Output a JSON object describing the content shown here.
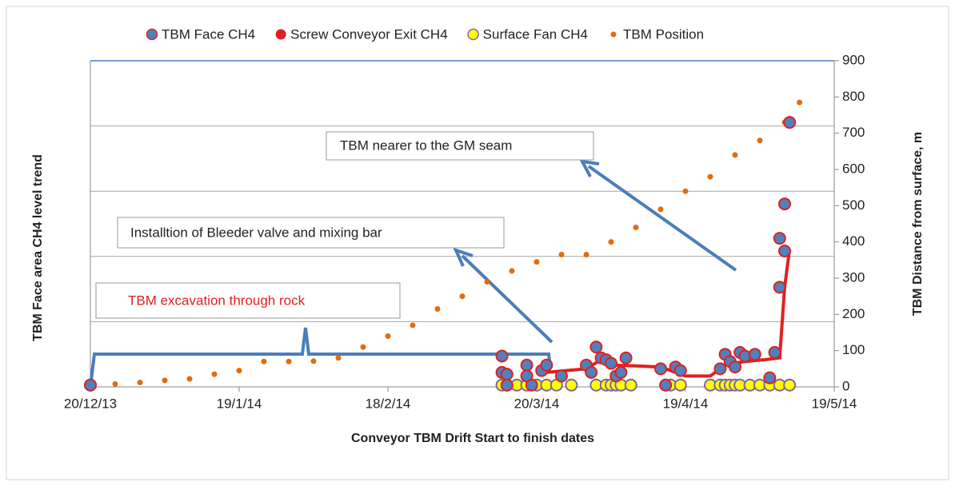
{
  "chart_data": {
    "type": "scatter",
    "x_label": "Conveyor TBM Drift Start to finish dates",
    "y_label": "TBM Face area CH4 level trend",
    "y2_label": "TBM Distance from surface, m",
    "xlim": [
      "2013-12-20",
      "2014-05-19"
    ],
    "xticks": [
      {
        "value": "2013-12-20",
        "label": "20/12/13"
      },
      {
        "value": "2014-01-19",
        "label": "19/1/14"
      },
      {
        "value": "2014-02-18",
        "label": "18/2/14"
      },
      {
        "value": "2014-03-20",
        "label": "20/3/14"
      },
      {
        "value": "2014-04-19",
        "label": "19/4/14"
      },
      {
        "value": "2014-05-19",
        "label": "19/5/14"
      }
    ],
    "y2lim": [
      0,
      900
    ],
    "y2ticks": [
      0,
      100,
      200,
      300,
      400,
      500,
      600,
      700,
      800,
      900
    ],
    "grid": true,
    "legend": "top",
    "series": [
      {
        "name": "TBM Face CH4",
        "color": "#4f81bd",
        "edge": "#e02020",
        "mode": "markers",
        "axis": "y2",
        "x": [
          "2013-12-20",
          "2014-03-13",
          "2014-03-13",
          "2014-03-14",
          "2014-03-14",
          "2014-03-18",
          "2014-03-18",
          "2014-03-19",
          "2014-03-21",
          "2014-03-22",
          "2014-03-25",
          "2014-03-30",
          "2014-03-31",
          "2014-04-01",
          "2014-04-02",
          "2014-04-03",
          "2014-04-04",
          "2014-04-05",
          "2014-04-06",
          "2014-04-07",
          "2014-04-14",
          "2014-04-15",
          "2014-04-17",
          "2014-04-18",
          "2014-04-26",
          "2014-04-27",
          "2014-04-28",
          "2014-04-29",
          "2014-04-30",
          "2014-05-01",
          "2014-05-03",
          "2014-05-06",
          "2014-05-07",
          "2014-05-08",
          "2014-05-08",
          "2014-05-09",
          "2014-05-09",
          "2014-05-10"
        ],
        "values": [
          5,
          85,
          40,
          35,
          5,
          60,
          30,
          5,
          45,
          60,
          30,
          60,
          40,
          110,
          80,
          75,
          65,
          30,
          40,
          80,
          50,
          5,
          55,
          45,
          50,
          90,
          70,
          55,
          95,
          85,
          90,
          25,
          95,
          275,
          410,
          505,
          375,
          730
        ]
      },
      {
        "name": "Screw Conveyor Exit CH4",
        "color": "#e02020",
        "mode": "line",
        "axis": "y2",
        "x": [
          "2014-03-22",
          "2014-03-26",
          "2014-03-30",
          "2014-04-02",
          "2014-04-04",
          "2014-04-09",
          "2014-04-14",
          "2014-04-19",
          "2014-04-24",
          "2014-04-27",
          "2014-05-01",
          "2014-05-05",
          "2014-05-08",
          "2014-05-09",
          "2014-05-10"
        ],
        "values": [
          40,
          45,
          50,
          75,
          60,
          58,
          55,
          30,
          30,
          60,
          70,
          75,
          80,
          275,
          380
        ]
      },
      {
        "name": "Surface Fan CH4",
        "color": "#ffff00",
        "edge": "#8064a2",
        "mode": "markers",
        "axis": "y2",
        "x": [
          "2013-12-20",
          "2014-03-13",
          "2014-03-14",
          "2014-03-16",
          "2014-03-18",
          "2014-03-20",
          "2014-03-22",
          "2014-03-24",
          "2014-03-27",
          "2014-04-01",
          "2014-04-03",
          "2014-04-04",
          "2014-04-05",
          "2014-04-06",
          "2014-04-08",
          "2014-04-15",
          "2014-04-16",
          "2014-04-18",
          "2014-04-24",
          "2014-04-26",
          "2014-04-27",
          "2014-04-28",
          "2014-04-29",
          "2014-04-30",
          "2014-05-02",
          "2014-05-04",
          "2014-05-06",
          "2014-05-08",
          "2014-05-10"
        ],
        "values": [
          5,
          5,
          5,
          5,
          5,
          5,
          5,
          5,
          5,
          5,
          5,
          5,
          5,
          5,
          5,
          5,
          5,
          5,
          5,
          5,
          5,
          5,
          5,
          5,
          5,
          5,
          5,
          5,
          5
        ]
      },
      {
        "name": "TBM Position",
        "color": "#e46c0a",
        "mode": "dots",
        "axis": "y2",
        "x": [
          "2013-12-20",
          "2013-12-25",
          "2013-12-30",
          "2014-01-04",
          "2014-01-09",
          "2014-01-14",
          "2014-01-19",
          "2014-01-24",
          "2014-01-29",
          "2014-02-03",
          "2014-02-08",
          "2014-02-13",
          "2014-02-18",
          "2014-02-23",
          "2014-02-28",
          "2014-03-05",
          "2014-03-10",
          "2014-03-15",
          "2014-03-20",
          "2014-03-25",
          "2014-03-30",
          "2014-04-04",
          "2014-04-09",
          "2014-04-14",
          "2014-04-19",
          "2014-04-24",
          "2014-04-29",
          "2014-05-04",
          "2014-05-09",
          "2014-05-12"
        ],
        "values": [
          5,
          8,
          12,
          18,
          22,
          35,
          45,
          70,
          70,
          71,
          80,
          110,
          140,
          170,
          215,
          250,
          290,
          320,
          345,
          365,
          365,
          400,
          440,
          490,
          540,
          580,
          640,
          680,
          730,
          785
        ]
      }
    ],
    "annotations": [
      "TBM nearer to the GM seam",
      "Installtion of Bleeder valve and mixing bar",
      "TBM excavation through rock"
    ]
  }
}
